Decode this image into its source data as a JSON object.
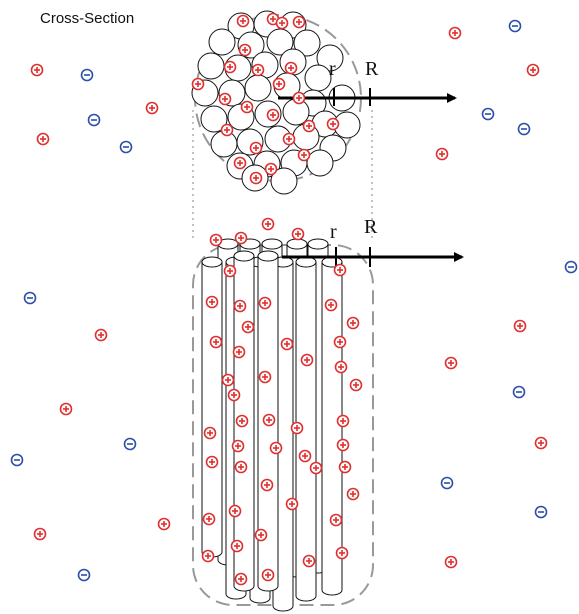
{
  "title": "Cross-Section",
  "labels": {
    "r": "r",
    "R": "R"
  },
  "charge_symbols": {
    "positive": "+",
    "negative": "−"
  },
  "colors": {
    "positive": "#e02f2f",
    "negative": "#2b4ea8",
    "outline": "#111111",
    "dashed": "#9a9a9a",
    "dotted": "#a8a8a8",
    "arrow": "#000000"
  }
}
